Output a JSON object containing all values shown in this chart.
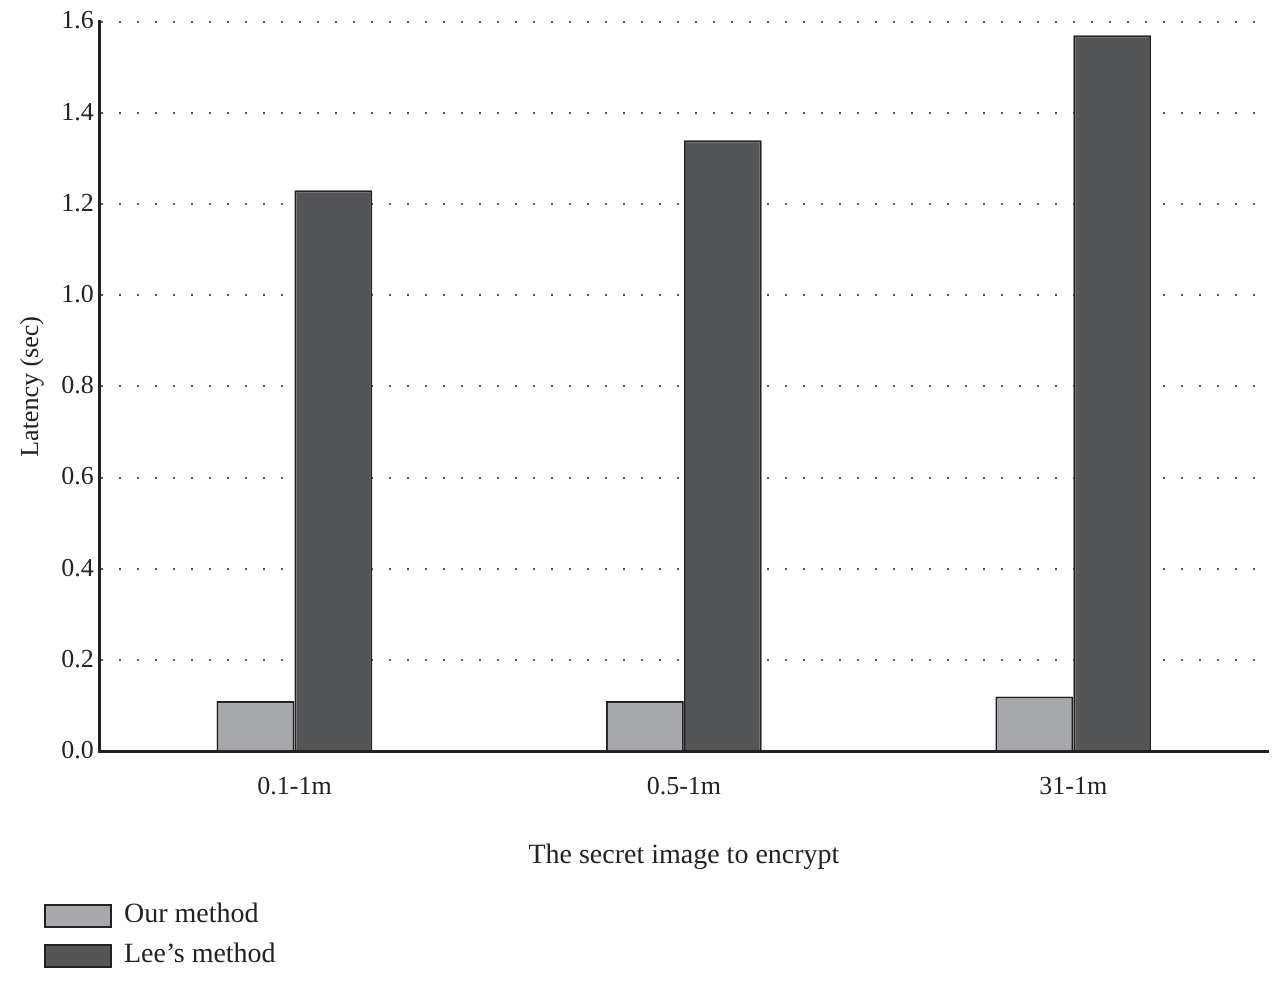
{
  "chart_data": {
    "type": "bar",
    "xlabel": "The secret image to encrypt",
    "ylabel": "Latency (sec)",
    "categories": [
      "0.1-1m",
      "0.5-1m",
      "31-1m"
    ],
    "series": [
      {
        "name": "Our method",
        "color": "#a7a8ab",
        "values": [
          0.11,
          0.11,
          0.12
        ]
      },
      {
        "name": "Lee’s method",
        "color": "#545557",
        "values": [
          1.23,
          1.34,
          1.57
        ]
      }
    ],
    "ylim": [
      0,
      1.6
    ],
    "yticks": [
      {
        "value": 0,
        "label": "0.0"
      },
      0.2,
      0.4,
      0.6,
      0.8,
      {
        "value": 1,
        "label": "1.0"
      },
      1.2,
      1.4,
      1.6
    ],
    "grid": "y",
    "legend": "bottom left"
  }
}
